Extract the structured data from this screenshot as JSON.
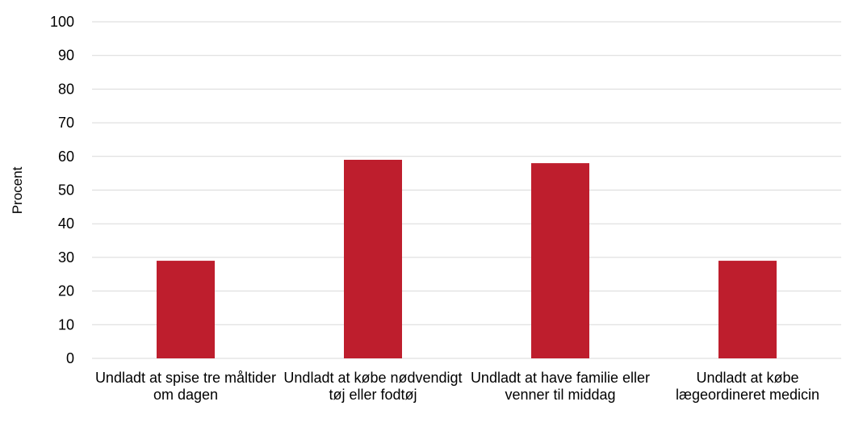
{
  "chart_data": {
    "type": "bar",
    "title": "",
    "xlabel": "",
    "ylabel": "Procent",
    "ylim": [
      0,
      100
    ],
    "yticks": [
      0,
      10,
      20,
      30,
      40,
      50,
      60,
      70,
      80,
      90,
      100
    ],
    "grid": true,
    "categories": [
      "Undladt at spise tre måltider om dagen",
      "Undladt at købe nødvendigt tøj eller fodtøj",
      "Undladt at have familie eller venner til middag",
      "Undladt at købe lægeordineret medicin"
    ],
    "values": [
      29,
      59,
      58,
      29
    ],
    "bar_color": "#be1e2d",
    "grid_color": "#d9d9d9"
  }
}
